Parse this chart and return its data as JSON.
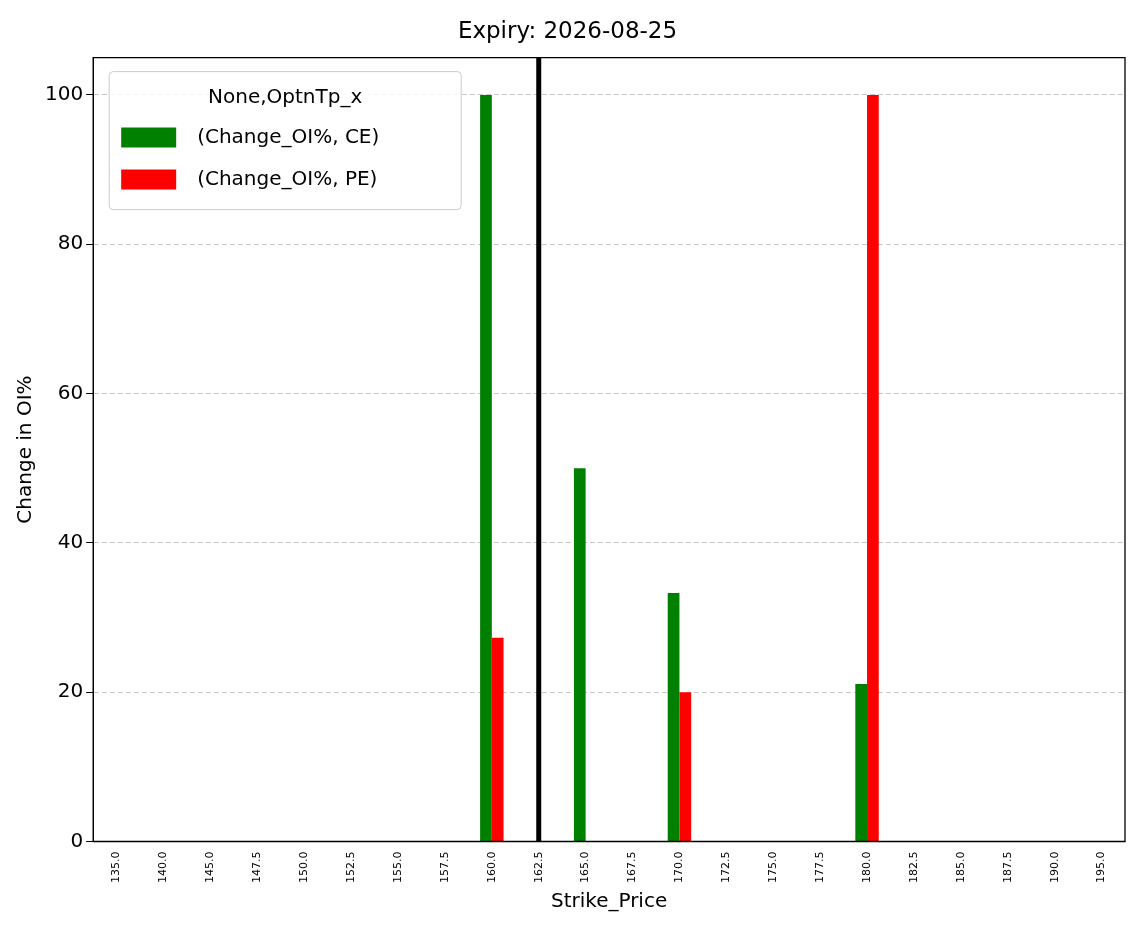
{
  "chart_data": {
    "type": "bar",
    "title": "Expiry: 2026-08-25",
    "xlabel": "Strike_Price",
    "ylabel": "Change in OI%",
    "legend_title": "None,OptnTp_x",
    "categories": [
      "135.0",
      "140.0",
      "145.0",
      "147.5",
      "150.0",
      "152.5",
      "155.0",
      "157.5",
      "160.0",
      "162.5",
      "165.0",
      "167.5",
      "170.0",
      "172.5",
      "175.0",
      "177.5",
      "180.0",
      "182.5",
      "185.0",
      "187.5",
      "190.0",
      "195.0"
    ],
    "series": [
      {
        "name": "(Change_OI%, CE)",
        "color": "#008000",
        "values": [
          0,
          0,
          0,
          0,
          0,
          0,
          0,
          0,
          100,
          0,
          50,
          0,
          33.3,
          0,
          0,
          0,
          21.1,
          0,
          0,
          0,
          0,
          0
        ]
      },
      {
        "name": "(Change_OI%, PE)",
        "color": "#ff0000",
        "values": [
          0,
          0,
          0,
          0,
          0,
          0,
          0,
          0,
          27.3,
          0,
          0,
          0,
          20,
          0,
          0,
          0,
          100,
          0,
          0,
          0,
          0,
          0
        ]
      }
    ],
    "ylim": [
      0,
      105
    ],
    "yticks": [
      0,
      20,
      40,
      60,
      80,
      100
    ],
    "grid": "y",
    "legend": "top left",
    "ref_lines": [
      {
        "axis": "x",
        "value": "162.5",
        "color": "#000000"
      }
    ]
  }
}
